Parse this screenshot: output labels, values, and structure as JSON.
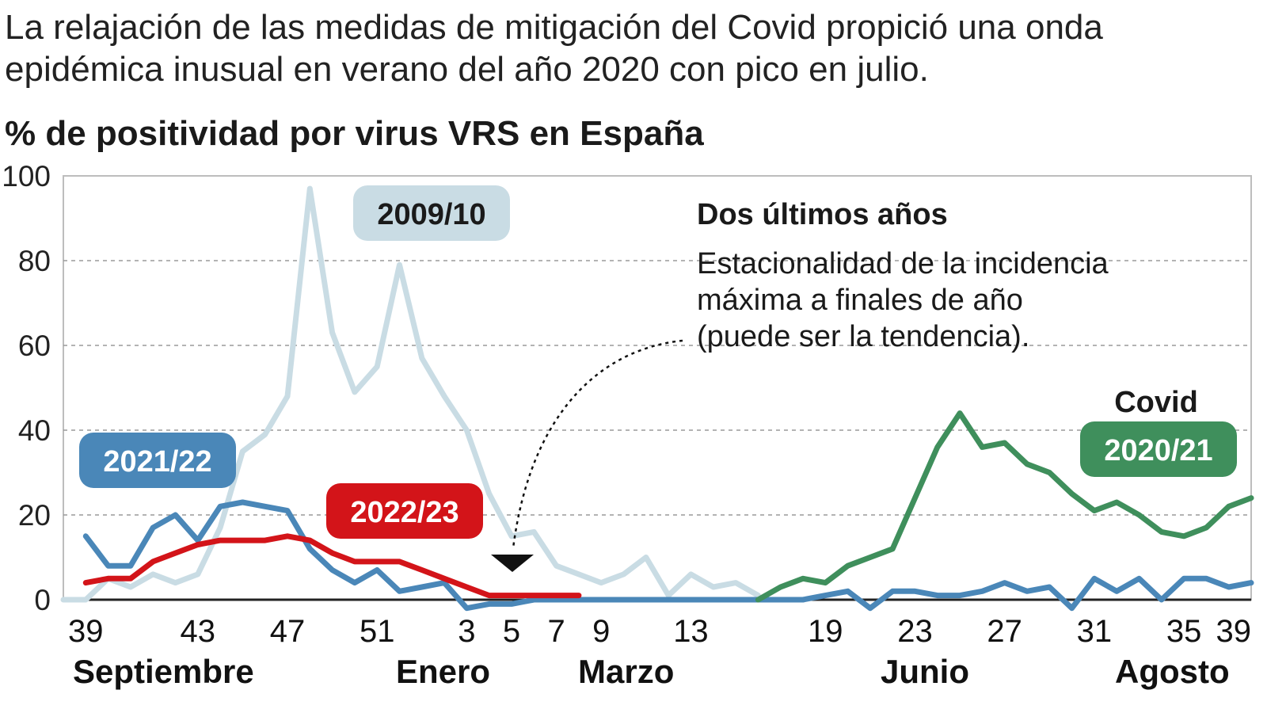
{
  "headline": "La relajación de las medidas de mitigación del Covid propició una onda epidémica inusual en verano del año 2020 con pico en julio.",
  "chart_data": {
    "type": "line",
    "title": "% de positividad por virus VRS en España",
    "xlabel": "",
    "ylabel": "",
    "ylim": [
      0,
      100
    ],
    "yticks": [
      "0",
      "20",
      "40",
      "60",
      "80",
      "100"
    ],
    "xtick_labels": [
      "39",
      "43",
      "47",
      "51",
      "3",
      "5",
      "7",
      "9",
      "13",
      "19",
      "23",
      "27",
      "31",
      "35",
      "39"
    ],
    "month_labels": [
      "Septiembre",
      "Enero",
      "Marzo",
      "Junio",
      "Agosto"
    ],
    "grid": true,
    "series": [
      {
        "name": "2009/10",
        "color": "#c9dce4",
        "values": [
          [
            0,
            0
          ],
          [
            1,
            0
          ],
          [
            2,
            5
          ],
          [
            3,
            3
          ],
          [
            4,
            6
          ],
          [
            5,
            4
          ],
          [
            6,
            6
          ],
          [
            7,
            17
          ],
          [
            8,
            35
          ],
          [
            9,
            39
          ],
          [
            10,
            48
          ],
          [
            11,
            97
          ],
          [
            12,
            63
          ],
          [
            13,
            49
          ],
          [
            14,
            55
          ],
          [
            15,
            79
          ],
          [
            16,
            57
          ],
          [
            17,
            48
          ],
          [
            18,
            40
          ],
          [
            19,
            25
          ],
          [
            20,
            15
          ],
          [
            21,
            16
          ],
          [
            22,
            8
          ],
          [
            23,
            6
          ],
          [
            24,
            4
          ],
          [
            25,
            6
          ],
          [
            26,
            10
          ],
          [
            27,
            1
          ],
          [
            28,
            6
          ],
          [
            29,
            3
          ],
          [
            30,
            4
          ],
          [
            31,
            1
          ]
        ]
      },
      {
        "name": "2021/22",
        "color": "#4a87b8",
        "values": [
          [
            1,
            15
          ],
          [
            2,
            8
          ],
          [
            3,
            8
          ],
          [
            4,
            17
          ],
          [
            5,
            20
          ],
          [
            6,
            14
          ],
          [
            7,
            22
          ],
          [
            8,
            23
          ],
          [
            9,
            22
          ],
          [
            10,
            21
          ],
          [
            11,
            12
          ],
          [
            12,
            7
          ],
          [
            13,
            4
          ],
          [
            14,
            7
          ],
          [
            15,
            2
          ],
          [
            16,
            3
          ],
          [
            17,
            4
          ],
          [
            18,
            -2
          ],
          [
            19,
            -1
          ],
          [
            20,
            -1
          ],
          [
            21,
            0
          ],
          [
            22,
            0
          ],
          [
            23,
            0
          ],
          [
            24,
            0
          ],
          [
            25,
            0
          ],
          [
            26,
            0
          ],
          [
            27,
            0
          ],
          [
            28,
            0
          ],
          [
            29,
            0
          ],
          [
            30,
            0
          ],
          [
            31,
            0
          ],
          [
            32,
            0
          ],
          [
            33,
            0
          ],
          [
            34,
            1
          ],
          [
            35,
            2
          ],
          [
            36,
            -2
          ],
          [
            37,
            2
          ],
          [
            38,
            2
          ],
          [
            39,
            1
          ],
          [
            40,
            1
          ],
          [
            41,
            2
          ],
          [
            42,
            4
          ],
          [
            43,
            2
          ],
          [
            44,
            3
          ],
          [
            45,
            -2
          ],
          [
            46,
            5
          ],
          [
            47,
            2
          ],
          [
            48,
            5
          ],
          [
            49,
            0
          ],
          [
            50,
            5
          ],
          [
            51,
            5
          ],
          [
            52,
            3
          ],
          [
            53,
            4
          ]
        ]
      },
      {
        "name": "2022/23",
        "color": "#d31419",
        "values": [
          [
            1,
            4
          ],
          [
            2,
            5
          ],
          [
            3,
            5
          ],
          [
            4,
            9
          ],
          [
            5,
            11
          ],
          [
            6,
            13
          ],
          [
            7,
            14
          ],
          [
            8,
            14
          ],
          [
            9,
            14
          ],
          [
            10,
            15
          ],
          [
            11,
            14
          ],
          [
            12,
            11
          ],
          [
            13,
            9
          ],
          [
            14,
            9
          ],
          [
            15,
            9
          ],
          [
            16,
            7
          ],
          [
            17,
            5
          ],
          [
            18,
            3
          ],
          [
            19,
            1
          ],
          [
            20,
            1
          ],
          [
            21,
            1
          ],
          [
            22,
            1
          ],
          [
            23,
            1
          ]
        ]
      },
      {
        "name": "2020/21",
        "color": "#3f8f5c",
        "values": [
          [
            31,
            0
          ],
          [
            32,
            3
          ],
          [
            33,
            5
          ],
          [
            34,
            4
          ],
          [
            35,
            8
          ],
          [
            36,
            10
          ],
          [
            37,
            12
          ],
          [
            38,
            24
          ],
          [
            39,
            36
          ],
          [
            40,
            44
          ],
          [
            41,
            36
          ],
          [
            42,
            37
          ],
          [
            43,
            32
          ],
          [
            44,
            30
          ],
          [
            45,
            25
          ],
          [
            46,
            21
          ],
          [
            47,
            23
          ],
          [
            48,
            20
          ],
          [
            49,
            16
          ],
          [
            50,
            15
          ],
          [
            51,
            17
          ],
          [
            52,
            22
          ],
          [
            53,
            24
          ]
        ]
      }
    ],
    "labels": {
      "s2009": "2009/10",
      "s2021": "2021/22",
      "s2022": "2022/23",
      "s2020": "2020/21",
      "covid": "Covid"
    },
    "annotation": {
      "title": "Dos últimos años",
      "lines": [
        "Estacionalidad de la incidencia",
        "máxima a finales de año",
        "(puede ser la tendencia)."
      ]
    }
  }
}
